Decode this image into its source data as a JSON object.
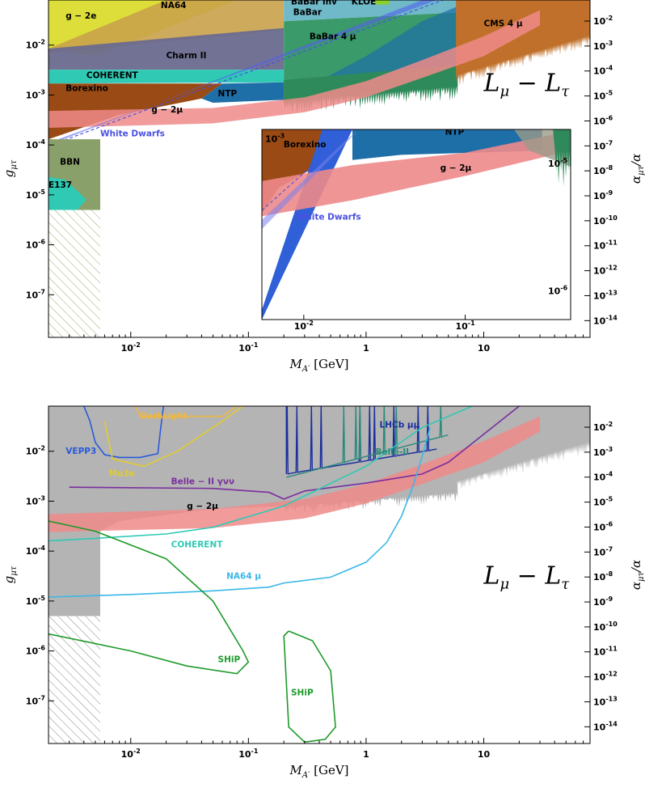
{
  "chart_data": [
    {
      "type": "area",
      "panel": "top",
      "xlabel": "M_{A'} [GeV]",
      "ylabel_left": "g_{μτ}",
      "ylabel_right": "α_{μτ}/α",
      "model_label": "L_μ − L_τ",
      "x_ticks": [
        "10^-2",
        "10^-1",
        "1",
        "10"
      ],
      "y_ticks_left": [
        "10^-2",
        "10^-3",
        "10^-4",
        "10^-5",
        "10^-6",
        "10^-7"
      ],
      "y_ticks_right": [
        "10^-2",
        "10^-3",
        "10^-4",
        "10^-5",
        "10^-6",
        "10^-7",
        "10^-8",
        "10^-9",
        "10^-10",
        "10^-11",
        "10^-12",
        "10^-13",
        "10^-14"
      ],
      "xlim": [
        0.002,
        80
      ],
      "ylim": [
        1.4e-08,
        0.08
      ],
      "xscale": "log",
      "yscale": "log",
      "regions": [
        {
          "name": "g−2e",
          "label": "g − 2e",
          "color": "#dede3a",
          "x": [
            0.002,
            0.002,
            0.2,
            0.03
          ],
          "y": [
            0.08,
            0.008,
            0.08,
            0.08
          ]
        },
        {
          "name": "NA64",
          "label": "NA64",
          "color": "#c9a24a",
          "x": [
            0.002,
            0.002,
            0.2,
            0.2
          ],
          "y": [
            0.08,
            0.004,
            0.02,
            0.08
          ]
        },
        {
          "name": "BaBar inv",
          "label": "BaBar inv",
          "color": "#6fb9c9",
          "x": [
            0.2,
            0.2,
            3,
            6
          ],
          "y": [
            0.08,
            0.03,
            0.03,
            0.08
          ]
        },
        {
          "name": "KLOE",
          "label": "KLOE",
          "color": "#8ad12a",
          "x": [
            1.2,
            1.6
          ],
          "y": [
            0.08,
            0.06
          ]
        },
        {
          "name": "Charm II",
          "label": "Charm II",
          "color": "#6a6a8e",
          "x": [
            0.002,
            0.002,
            0.2,
            0.2
          ],
          "y": [
            0.004,
            0.003,
            0.003,
            0.02
          ]
        },
        {
          "name": "COHERENT",
          "label": "COHERENT",
          "color": "#2fc9b4",
          "x": [
            0.002,
            0.002,
            0.2
          ],
          "y": [
            0.003,
            0.0018,
            0.002
          ]
        },
        {
          "name": "Borexino",
          "label": "Borexino",
          "color": "#9a4a14",
          "x": [
            0.002,
            0.002,
            0.04
          ],
          "y": [
            0.0018,
            0.00013,
            0.0009
          ]
        },
        {
          "name": "NTP",
          "label": "NTP",
          "color": "#1e6ea8",
          "x": [
            0.04,
            0.2,
            3
          ],
          "y": [
            0.0009,
            0.0009,
            0.03
          ]
        },
        {
          "name": "BaBar",
          "label": "BaBar",
          "color": "#3a9a6a",
          "x": [
            0.2,
            0.2,
            6,
            6
          ],
          "y": [
            0.08,
            0.0008,
            0.002,
            0.08
          ]
        },
        {
          "name": "BaBar 4μ",
          "label": "BaBar 4 μ",
          "color": "#2e8a5a",
          "x": [
            0.2,
            6
          ],
          "y": [
            0.0008,
            0.002
          ]
        },
        {
          "name": "CMS 4μ",
          "label": "CMS 4 μ",
          "color": "#c0702a",
          "x": [
            6,
            80
          ],
          "y": [
            0.002,
            0.08
          ]
        },
        {
          "name": "g−2μ",
          "label": "g − 2μ",
          "color": "#ee8a8a",
          "x": [
            0.002,
            1,
            10
          ],
          "y": [
            0.0003,
            0.001,
            0.01
          ]
        },
        {
          "name": "White Dwarfs",
          "label": "White Dwarfs",
          "color": "#5560ee",
          "x": [
            0.002,
            10
          ],
          "y": [
            0.0001,
            0.08
          ]
        },
        {
          "name": "BBN",
          "label": "BBN",
          "color": "#8aa06a",
          "x": [
            0.002,
            0.0055
          ],
          "y": [
            5e-06,
            0.00013
          ]
        },
        {
          "name": "E137",
          "label": "E137",
          "color": "#2fc9b4",
          "x": [
            0.002,
            0.004
          ],
          "y": [
            4e-06,
            2e-05
          ]
        }
      ],
      "inset": {
        "xlim": [
          0.004,
          0.45
        ],
        "x_ticks": [
          "10^-2",
          "10^-1"
        ],
        "y_ticks_left": [
          "10^-3"
        ],
        "y_ticks_right": [
          "10^-5",
          "10^-6"
        ],
        "labels": [
          "Borexino",
          "NTP",
          "g − 2μ",
          "White Dwarfs"
        ]
      }
    },
    {
      "type": "line",
      "panel": "bottom",
      "xlabel": "M_{A'} [GeV]",
      "ylabel_left": "g_{μτ}",
      "ylabel_right": "α_{μτ}/α",
      "model_label": "L_μ − L_τ",
      "x_ticks": [
        "10^-2",
        "10^-1",
        "1",
        "10"
      ],
      "y_ticks_left": [
        "10^-2",
        "10^-3",
        "10^-4",
        "10^-5",
        "10^-6",
        "10^-7"
      ],
      "y_ticks_right": [
        "10^-2",
        "10^-3",
        "10^-4",
        "10^-5",
        "10^-6",
        "10^-7",
        "10^-8",
        "10^-9",
        "10^-10",
        "10^-11",
        "10^-12",
        "10^-13",
        "10^-14"
      ],
      "xlim": [
        0.002,
        80
      ],
      "ylim": [
        1.4e-08,
        0.08
      ],
      "xscale": "log",
      "yscale": "log",
      "series": [
        {
          "name": "VEPP3",
          "label": "VEPP3",
          "color": "#2a5ad8",
          "x": [
            0.004,
            0.0045,
            0.005,
            0.006,
            0.008,
            0.012,
            0.017,
            0.018,
            0.019
          ],
          "y": [
            0.08,
            0.04,
            0.015,
            0.0085,
            0.0075,
            0.0075,
            0.009,
            0.03,
            0.08
          ]
        },
        {
          "name": "DarkLight",
          "label": "DarkLight",
          "color": "#f0b840",
          "x": [
            0.011,
            0.012,
            0.06,
            0.08
          ],
          "y": [
            0.08,
            0.05,
            0.05,
            0.08
          ]
        },
        {
          "name": "Mu3e",
          "label": "Mu3e",
          "color": "#e0cc30",
          "x": [
            0.006,
            0.007,
            0.013,
            0.025,
            0.06,
            0.09
          ],
          "y": [
            0.04,
            0.007,
            0.005,
            0.01,
            0.04,
            0.08
          ]
        },
        {
          "name": "Belle-II γνν",
          "label": "Belle − II γνν",
          "color": "#7a2e9e",
          "x": [
            0.003,
            0.05,
            0.15,
            0.2,
            0.3,
            1,
            3,
            5,
            20
          ],
          "y": [
            0.0019,
            0.0018,
            0.0015,
            0.0011,
            0.0016,
            0.0023,
            0.0035,
            0.006,
            0.08
          ]
        },
        {
          "name": "LHCb μμ",
          "label": "LHCb μμ",
          "color": "#1a2e9e",
          "x": [
            0.21,
            0.21,
            0.5,
            1,
            2,
            3,
            4
          ],
          "y": [
            0.08,
            0.0035,
            0.004,
            0.005,
            0.007,
            0.009,
            0.011
          ]
        },
        {
          "name": "Belle-II",
          "label": "Belle-II",
          "color": "#2a8a7a",
          "x": [
            0.21,
            0.5,
            1,
            2,
            3,
            5
          ],
          "y": [
            0.003,
            0.004,
            0.006,
            0.008,
            0.01,
            0.02
          ]
        },
        {
          "name": "COHERENT",
          "label": "COHERENT",
          "color": "#2fc9b4",
          "x": [
            0.002,
            0.005,
            0.02,
            0.05,
            0.2,
            1,
            3,
            8
          ],
          "y": [
            0.00016,
            0.00018,
            0.00022,
            0.0003,
            0.0008,
            0.005,
            0.03,
            0.08
          ]
        },
        {
          "name": "NA64 μ",
          "label": "NA64 μ",
          "color": "#3ab8e8",
          "x": [
            0.002,
            0.01,
            0.05,
            0.15,
            0.2,
            0.5,
            1,
            1.5,
            2,
            2.5,
            3,
            3.5
          ],
          "y": [
            1.2e-05,
            1.35e-05,
            1.6e-05,
            1.9e-05,
            2.3e-05,
            3e-05,
            6e-05,
            0.00015,
            0.0005,
            0.002,
            0.008,
            0.03
          ]
        },
        {
          "name": "SHiP",
          "label": "SHiP",
          "color": "#1e9a2a",
          "x": [
            0.002,
            0.005,
            0.02,
            0.05,
            0.09,
            0.1,
            0.08,
            0.03,
            0.01,
            0.002
          ],
          "y": [
            0.0004,
            0.00025,
            7e-05,
            1e-05,
            1e-06,
            6e-07,
            3.5e-07,
            5e-07,
            1e-06,
            2.2e-06
          ]
        },
        {
          "name": "SHiP",
          "label": "SHiP",
          "color": "#1e9a2a",
          "x": [
            0.22,
            0.2,
            0.22,
            0.3,
            0.45,
            0.55,
            0.5,
            0.35,
            0.22
          ],
          "y": [
            2.5e-06,
            2e-06,
            3e-08,
            1.5e-08,
            1.7e-08,
            3e-08,
            4e-07,
            1.6e-06,
            2.5e-06
          ]
        },
        {
          "name": "g−2μ",
          "label": "g − 2μ",
          "color": "#ee8a8a",
          "x": [
            0.002,
            0.1,
            1,
            5
          ],
          "y": [
            0.0005,
            0.0008,
            0.002,
            0.005
          ]
        }
      ],
      "shaded_excluded": {
        "label": "",
        "color": "#b4b4b4"
      }
    }
  ]
}
